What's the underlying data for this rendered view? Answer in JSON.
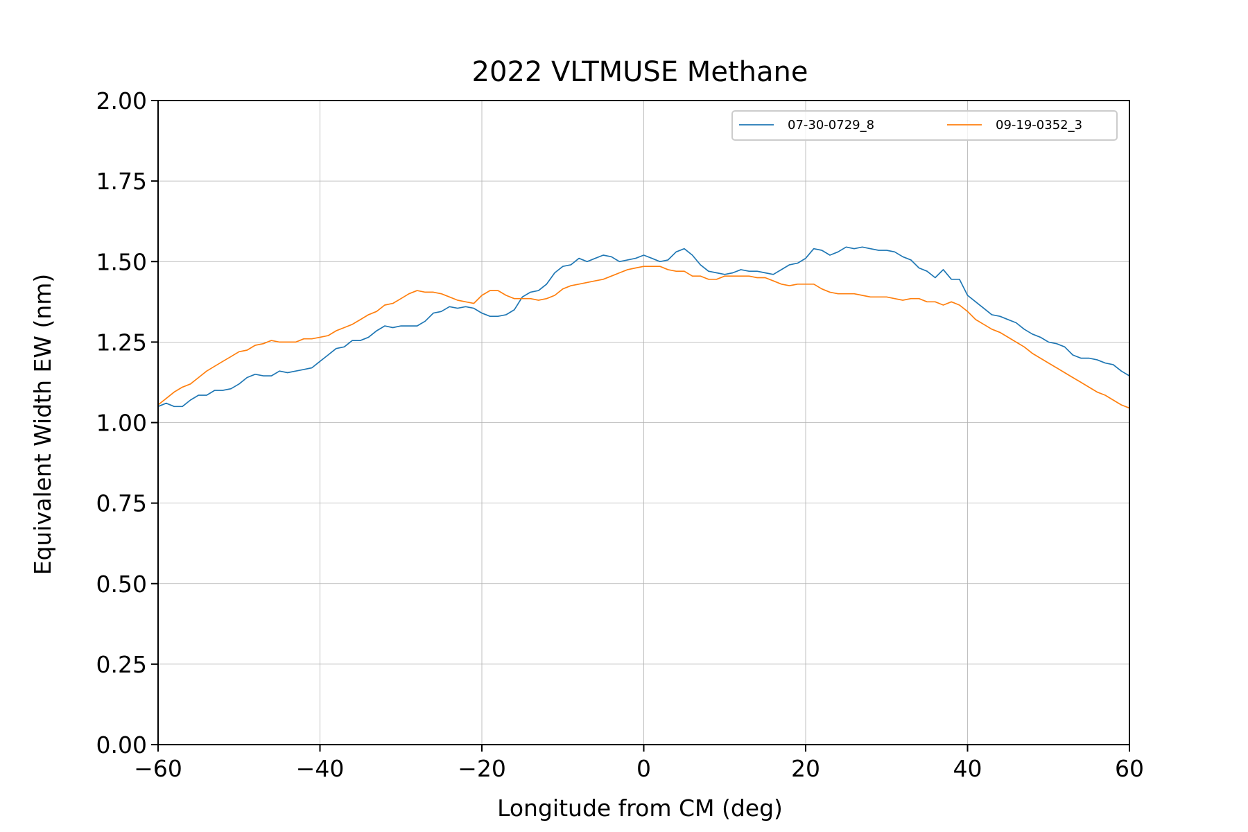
{
  "chart_data": {
    "type": "line",
    "title": "2022 VLTMUSE Methane",
    "xlabel": "Longitude from CM (deg)",
    "ylabel": "Equivalent Width EW (nm)",
    "xlim": [
      -60,
      60
    ],
    "ylim": [
      0,
      2
    ],
    "x_ticks": [
      -60,
      -40,
      -20,
      0,
      20,
      40,
      60
    ],
    "x_tick_labels": [
      "−60",
      "−40",
      "−20",
      "0",
      "20",
      "40",
      "60"
    ],
    "y_ticks": [
      0,
      0.25,
      0.5,
      0.75,
      1.0,
      1.25,
      1.5,
      1.75,
      2.0
    ],
    "y_tick_labels": [
      "0.00",
      "0.25",
      "0.50",
      "0.75",
      "1.00",
      "1.25",
      "1.50",
      "1.75",
      "2.00"
    ],
    "grid": true,
    "legend_position": "top-right",
    "x": [
      -60,
      -59,
      -58,
      -57,
      -56,
      -55,
      -54,
      -53,
      -52,
      -51,
      -50,
      -49,
      -48,
      -47,
      -46,
      -45,
      -44,
      -43,
      -42,
      -41,
      -40,
      -39,
      -38,
      -37,
      -36,
      -35,
      -34,
      -33,
      -32,
      -31,
      -30,
      -29,
      -28,
      -27,
      -26,
      -25,
      -24,
      -23,
      -22,
      -21,
      -20,
      -19,
      -18,
      -17,
      -16,
      -15,
      -14,
      -13,
      -12,
      -11,
      -10,
      -9,
      -8,
      -7,
      -6,
      -5,
      -4,
      -3,
      -2,
      -1,
      0,
      1,
      2,
      3,
      4,
      5,
      6,
      7,
      8,
      9,
      10,
      11,
      12,
      13,
      14,
      15,
      16,
      17,
      18,
      19,
      20,
      21,
      22,
      23,
      24,
      25,
      26,
      27,
      28,
      29,
      30,
      31,
      32,
      33,
      34,
      35,
      36,
      37,
      38,
      39,
      40,
      41,
      42,
      43,
      44,
      45,
      46,
      47,
      48,
      49,
      50,
      51,
      52,
      53,
      54,
      55,
      56,
      57,
      58,
      59,
      60
    ],
    "series": [
      {
        "name": "07-30-0729_8",
        "color": "#1f77b4",
        "values": [
          1.05,
          1.06,
          1.05,
          1.05,
          1.07,
          1.085,
          1.085,
          1.1,
          1.1,
          1.105,
          1.12,
          1.14,
          1.15,
          1.145,
          1.145,
          1.16,
          1.155,
          1.16,
          1.165,
          1.17,
          1.19,
          1.21,
          1.23,
          1.235,
          1.255,
          1.255,
          1.265,
          1.285,
          1.3,
          1.295,
          1.3,
          1.3,
          1.3,
          1.315,
          1.34,
          1.345,
          1.36,
          1.355,
          1.36,
          1.355,
          1.34,
          1.33,
          1.33,
          1.335,
          1.35,
          1.39,
          1.405,
          1.41,
          1.43,
          1.465,
          1.485,
          1.49,
          1.51,
          1.5,
          1.51,
          1.52,
          1.515,
          1.5,
          1.505,
          1.51,
          1.52,
          1.51,
          1.5,
          1.505,
          1.53,
          1.54,
          1.52,
          1.49,
          1.47,
          1.465,
          1.46,
          1.465,
          1.475,
          1.47,
          1.47,
          1.465,
          1.46,
          1.475,
          1.49,
          1.495,
          1.51,
          1.54,
          1.535,
          1.52,
          1.53,
          1.545,
          1.54,
          1.545,
          1.54,
          1.535,
          1.535,
          1.53,
          1.515,
          1.505,
          1.48,
          1.47,
          1.45,
          1.475,
          1.445,
          1.445,
          1.395,
          1.375,
          1.355,
          1.335,
          1.33,
          1.32,
          1.31,
          1.29,
          1.275,
          1.265,
          1.25,
          1.245,
          1.235,
          1.21,
          1.2,
          1.2,
          1.195,
          1.185,
          1.18,
          1.16,
          1.145
        ]
      },
      {
        "name": "09-19-0352_3",
        "color": "#ff7f0e",
        "values": [
          1.055,
          1.075,
          1.095,
          1.11,
          1.12,
          1.14,
          1.16,
          1.175,
          1.19,
          1.205,
          1.22,
          1.225,
          1.24,
          1.245,
          1.255,
          1.25,
          1.25,
          1.25,
          1.26,
          1.26,
          1.265,
          1.27,
          1.285,
          1.295,
          1.305,
          1.32,
          1.335,
          1.345,
          1.365,
          1.37,
          1.385,
          1.4,
          1.41,
          1.405,
          1.405,
          1.4,
          1.39,
          1.38,
          1.375,
          1.37,
          1.395,
          1.41,
          1.41,
          1.395,
          1.385,
          1.385,
          1.385,
          1.38,
          1.385,
          1.395,
          1.415,
          1.425,
          1.43,
          1.435,
          1.44,
          1.445,
          1.455,
          1.465,
          1.475,
          1.48,
          1.485,
          1.485,
          1.485,
          1.475,
          1.47,
          1.47,
          1.455,
          1.455,
          1.445,
          1.445,
          1.455,
          1.455,
          1.455,
          1.455,
          1.45,
          1.45,
          1.44,
          1.43,
          1.425,
          1.43,
          1.43,
          1.43,
          1.415,
          1.405,
          1.4,
          1.4,
          1.4,
          1.395,
          1.39,
          1.39,
          1.39,
          1.385,
          1.38,
          1.385,
          1.385,
          1.375,
          1.375,
          1.365,
          1.375,
          1.365,
          1.345,
          1.32,
          1.305,
          1.29,
          1.28,
          1.265,
          1.25,
          1.235,
          1.215,
          1.2,
          1.185,
          1.17,
          1.155,
          1.14,
          1.125,
          1.11,
          1.095,
          1.085,
          1.07,
          1.055,
          1.045
        ]
      }
    ]
  }
}
